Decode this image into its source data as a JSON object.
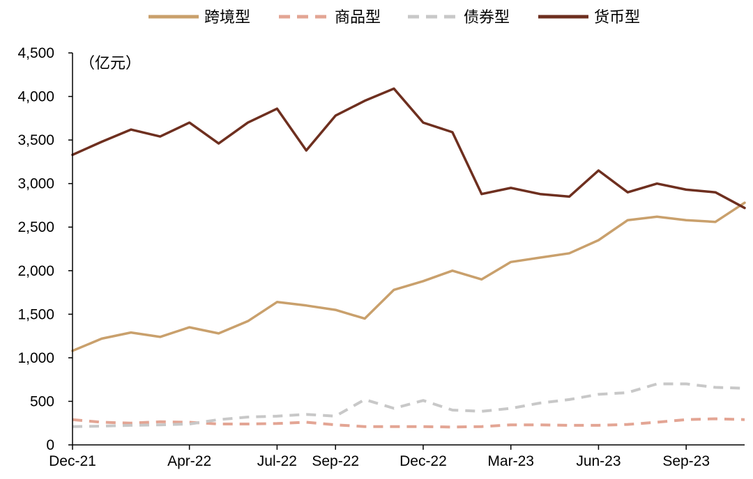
{
  "chart_data": {
    "type": "line",
    "unit": "（亿元）",
    "ylim": [
      0,
      4500
    ],
    "y_ticks": [
      0,
      500,
      1000,
      1500,
      2000,
      2500,
      3000,
      3500,
      4000,
      4500
    ],
    "y_tick_labels": [
      "0",
      "500",
      "1,000",
      "1,500",
      "2,000",
      "2,500",
      "3,000",
      "3,500",
      "4,000",
      "4,500"
    ],
    "x_ticks": [
      "2021-12",
      "2022-04",
      "2022-07",
      "2022-09",
      "2022-12",
      "2023-03",
      "2023-06",
      "2023-09"
    ],
    "x_tick_labels": [
      "Dec-21",
      "Apr-22",
      "Jul-22",
      "Sep-22",
      "Dec-22",
      "Mar-23",
      "Jun-23",
      "Sep-23"
    ],
    "x": [
      "2021-12",
      "2022-01",
      "2022-02",
      "2022-03",
      "2022-04",
      "2022-05",
      "2022-06",
      "2022-07",
      "2022-08",
      "2022-09",
      "2022-10",
      "2022-11",
      "2022-12",
      "2023-01",
      "2023-02",
      "2023-03",
      "2023-04",
      "2023-05",
      "2023-06",
      "2023-07",
      "2023-08",
      "2023-09",
      "2023-10",
      "2023-11"
    ],
    "legend_position": "top",
    "series": [
      {
        "name": "跨境型",
        "color": "#c9a06c",
        "dash": "solid",
        "values": [
          1080,
          1220,
          1290,
          1240,
          1350,
          1280,
          1420,
          1640,
          1600,
          1550,
          1450,
          1780,
          1880,
          2000,
          1900,
          2100,
          2150,
          2200,
          2350,
          2580,
          2620,
          2580,
          2560,
          2780
        ]
      },
      {
        "name": "商品型",
        "color": "#e3a594",
        "dash": "dashed",
        "values": [
          290,
          260,
          250,
          265,
          260,
          240,
          240,
          245,
          260,
          230,
          210,
          210,
          210,
          205,
          210,
          230,
          230,
          225,
          225,
          235,
          260,
          290,
          300,
          290
        ]
      },
      {
        "name": "债券型",
        "color": "#c8c8c8",
        "dash": "dashed",
        "values": [
          210,
          215,
          225,
          230,
          240,
          290,
          320,
          330,
          350,
          330,
          520,
          420,
          510,
          400,
          385,
          420,
          480,
          520,
          580,
          600,
          700,
          700,
          660,
          650
        ]
      },
      {
        "name": "货币型",
        "color": "#6e2f1f",
        "dash": "solid",
        "values": [
          3330,
          3480,
          3620,
          3540,
          3700,
          3460,
          3700,
          3860,
          3380,
          3780,
          3950,
          4090,
          3700,
          3590,
          2880,
          2950,
          2880,
          2850,
          3150,
          2900,
          3000,
          2930,
          2900,
          2720
        ]
      }
    ]
  }
}
